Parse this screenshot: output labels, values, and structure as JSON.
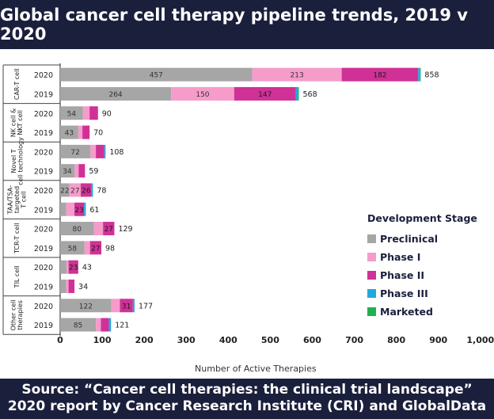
{
  "title": "Global cancer cell therapy pipeline trends, 2019 v 2020",
  "footer": {
    "line1": "Source: “Cancer cell therapies: the clinical trial landscape”",
    "line2": "2020 report by Cancer Research Institute (CRI) and GlobalData"
  },
  "chart_data": {
    "type": "bar",
    "orientation": "horizontal",
    "stacked": true,
    "xlabel": "Number of Active Therapies",
    "xlim": [
      0,
      1000
    ],
    "xticks": [
      "0",
      "100",
      "200",
      "300",
      "400",
      "500",
      "600",
      "700",
      "800",
      "900",
      "1,000"
    ],
    "legend": {
      "title": "Development Stage",
      "placement": "right"
    },
    "series": [
      {
        "name": "Preclinical",
        "color": "#a6a6a6"
      },
      {
        "name": "Phase I",
        "color": "#f59ccb"
      },
      {
        "name": "Phase II",
        "color": "#cf3196"
      },
      {
        "name": "Phase III",
        "color": "#22a8df"
      },
      {
        "name": "Marketed",
        "color": "#1fb14f"
      }
    ],
    "groups": [
      {
        "name": "CAR-T cell",
        "rows": [
          {
            "year": "2020",
            "values": [
              457,
              213,
              182,
              5,
              1
            ],
            "labels": [
              "457",
              "213",
              "182",
              "",
              ""
            ],
            "total": "858"
          },
          {
            "year": "2019",
            "values": [
              264,
              150,
              147,
              5,
              2
            ],
            "labels": [
              "264",
              "150",
              "147",
              "",
              ""
            ],
            "total": "568"
          }
        ]
      },
      {
        "name": "NK cell & NKT cell",
        "rows": [
          {
            "year": "2020",
            "values": [
              54,
              16,
              20,
              0,
              0
            ],
            "labels": [
              "54",
              "",
              "",
              "",
              ""
            ],
            "total": "90"
          },
          {
            "year": "2019",
            "values": [
              43,
              10,
              17,
              0,
              0
            ],
            "labels": [
              "43",
              "",
              "",
              "",
              ""
            ],
            "total": "70"
          }
        ]
      },
      {
        "name": "Novel T cell technology",
        "rows": [
          {
            "year": "2020",
            "values": [
              72,
              13,
              20,
              3,
              0
            ],
            "labels": [
              "72",
              "",
              "",
              "",
              ""
            ],
            "total": "108"
          },
          {
            "year": "2019",
            "values": [
              34,
              10,
              15,
              0,
              0
            ],
            "labels": [
              "34",
              "",
              "",
              "",
              ""
            ],
            "total": "59"
          }
        ]
      },
      {
        "name": "TAA/TSA-targeted T cell",
        "rows": [
          {
            "year": "2020",
            "values": [
              22,
              27,
              26,
              3,
              0
            ],
            "labels": [
              "22",
              "27",
              "26",
              "",
              ""
            ],
            "total": "78"
          },
          {
            "year": "2019",
            "values": [
              14,
              20,
              23,
              4,
              0
            ],
            "labels": [
              "",
              "",
              "23",
              "",
              ""
            ],
            "total": "61"
          }
        ]
      },
      {
        "name": "TCR-T cell",
        "rows": [
          {
            "year": "2020",
            "values": [
              80,
              22,
              27,
              0,
              0
            ],
            "labels": [
              "80",
              "",
              "27",
              "",
              ""
            ],
            "total": "129"
          },
          {
            "year": "2019",
            "values": [
              58,
              13,
              27,
              0,
              0
            ],
            "labels": [
              "58",
              "",
              "27",
              "",
              ""
            ],
            "total": "98"
          }
        ]
      },
      {
        "name": "TIL cell",
        "rows": [
          {
            "year": "2020",
            "values": [
              15,
              5,
              23,
              0,
              0
            ],
            "labels": [
              "",
              "",
              "23",
              "",
              ""
            ],
            "total": "43"
          },
          {
            "year": "2019",
            "values": [
              14,
              6,
              14,
              0,
              0
            ],
            "labels": [
              "",
              "",
              "",
              "",
              ""
            ],
            "total": "34"
          }
        ]
      },
      {
        "name": "Other cell therapies",
        "rows": [
          {
            "year": "2020",
            "values": [
              122,
              20,
              31,
              4,
              0
            ],
            "labels": [
              "122",
              "",
              "31",
              "",
              ""
            ],
            "total": "177"
          },
          {
            "year": "2019",
            "values": [
              85,
              12,
              19,
              5,
              0
            ],
            "labels": [
              "85",
              "",
              "",
              "",
              ""
            ],
            "total": "121"
          }
        ]
      }
    ]
  }
}
